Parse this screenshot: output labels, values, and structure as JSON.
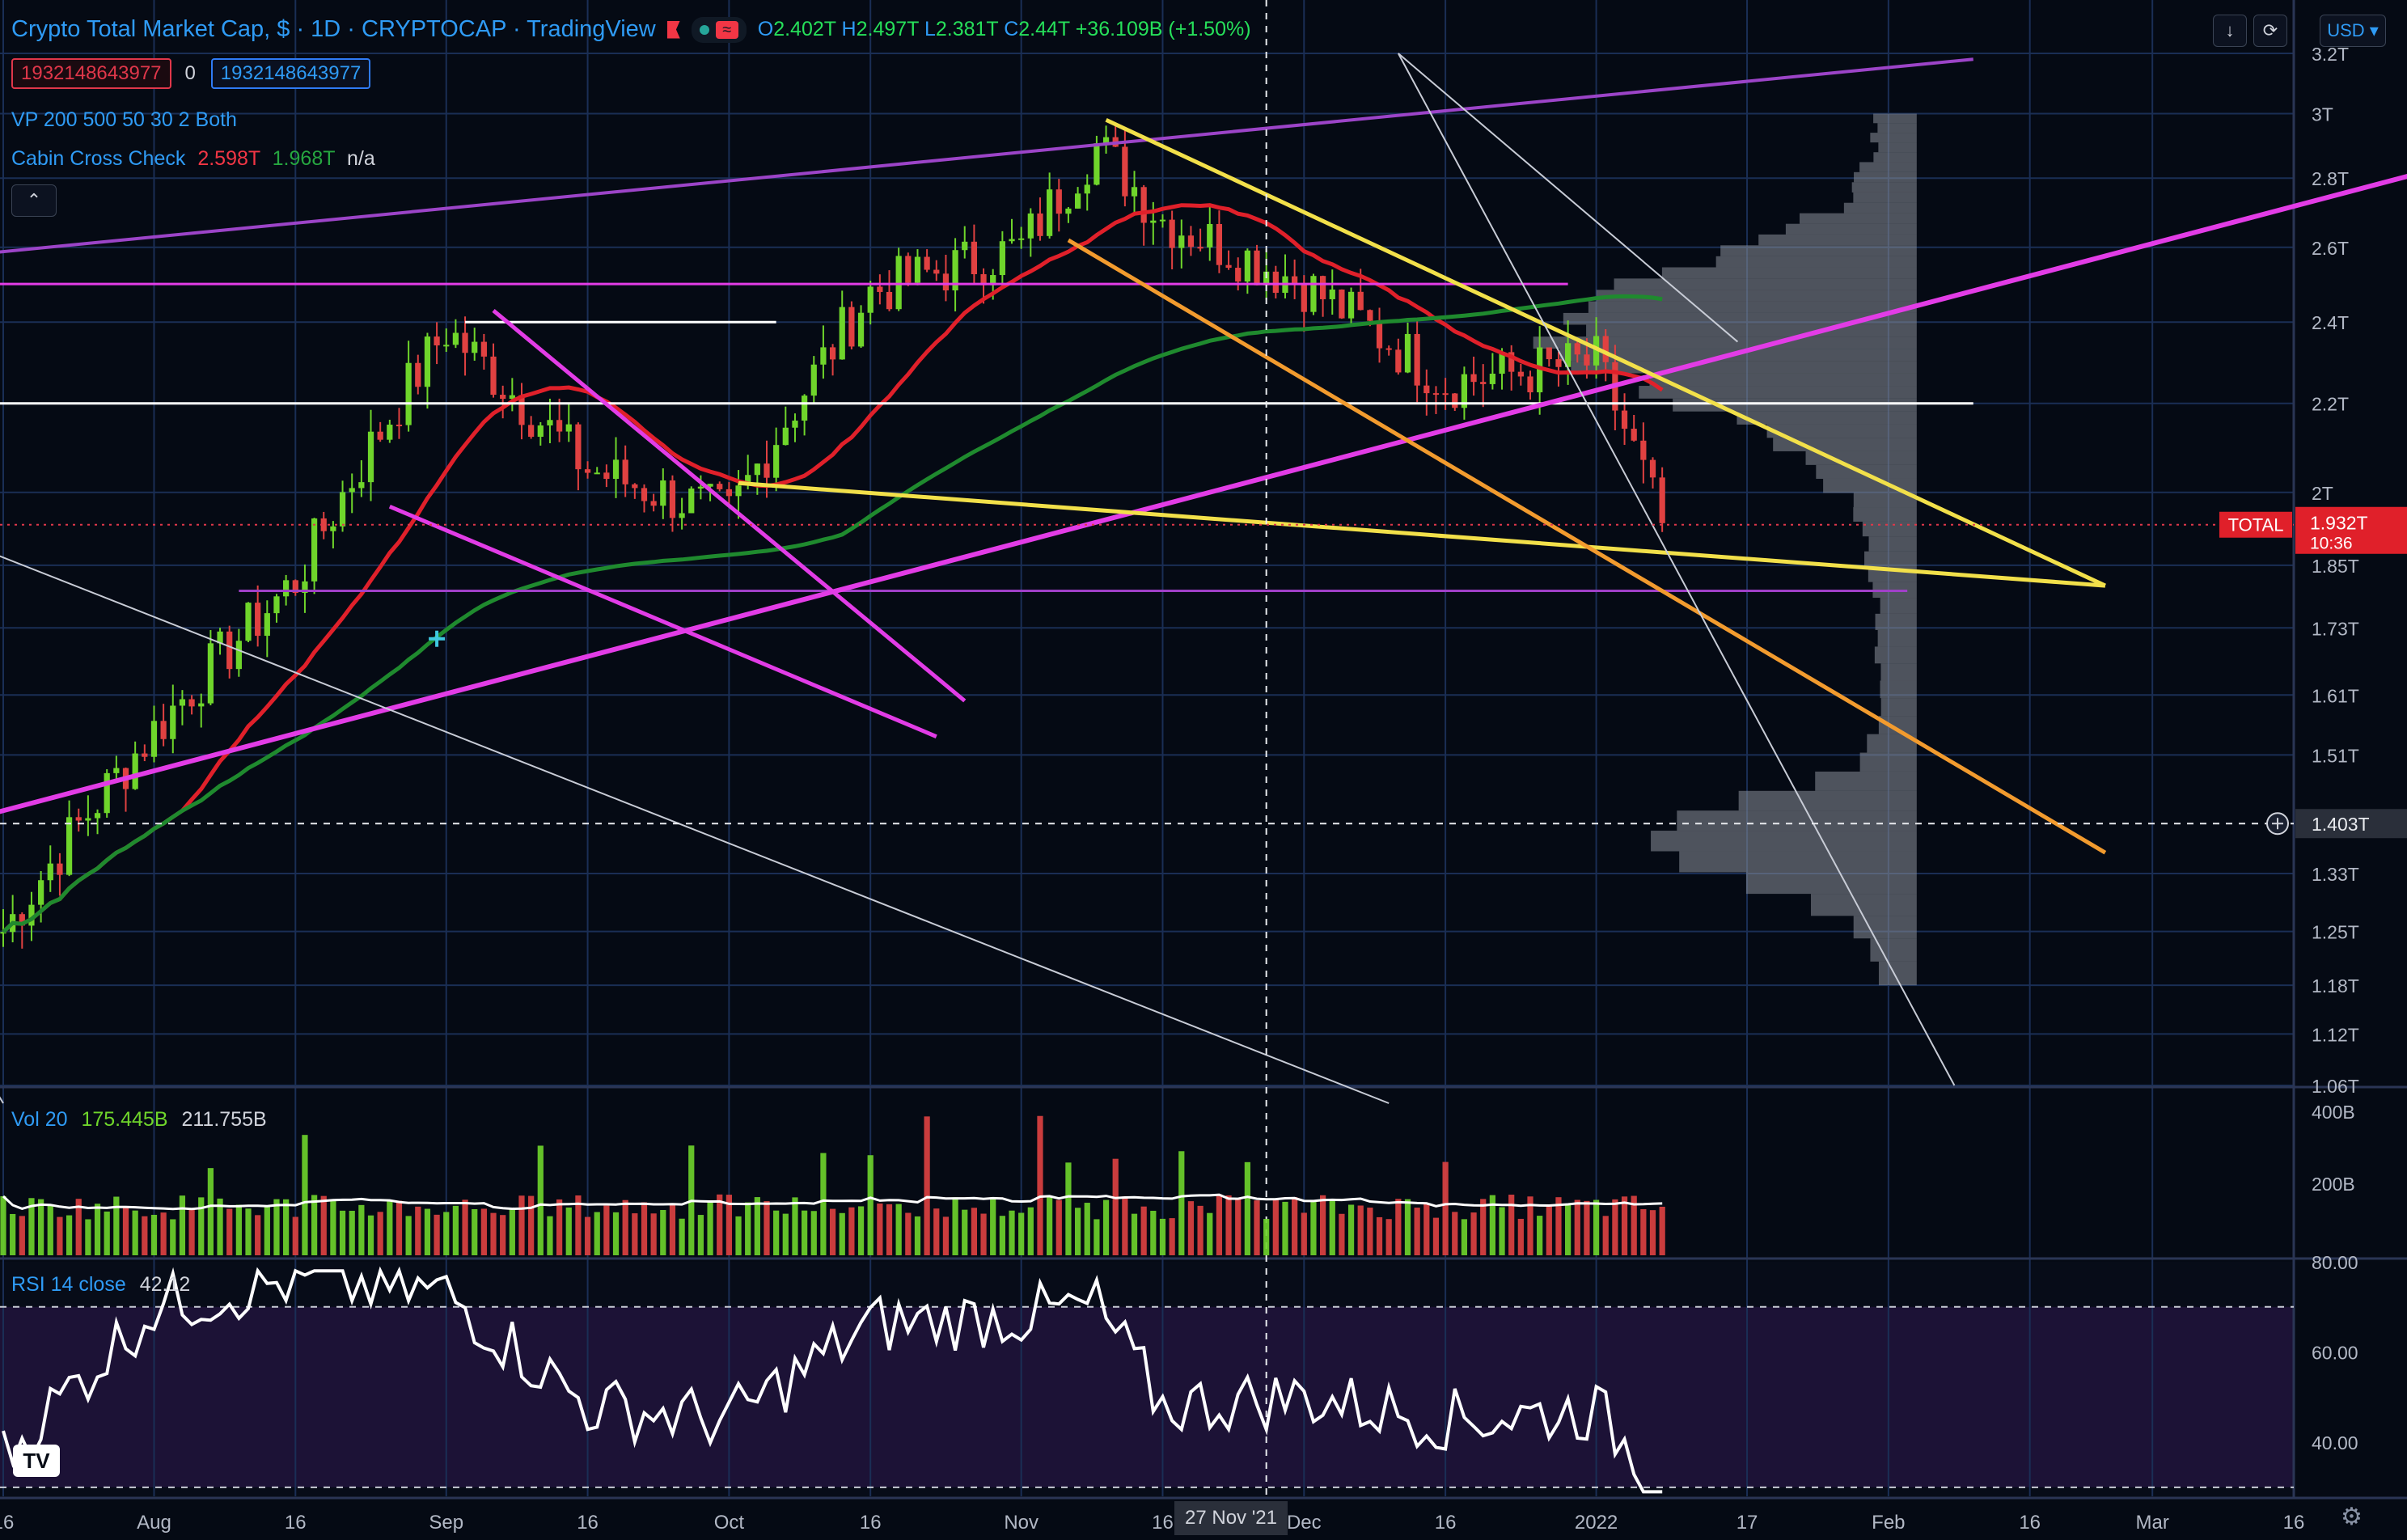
{
  "header": {
    "symbol_title": "Crypto Total Market Cap, $ · 1D · CRYPTOCAP · TradingView",
    "ohlc": {
      "o_label": "O",
      "o": "2.402T",
      "h_label": "H",
      "h": "2.497T",
      "l_label": "L",
      "l": "2.381T",
      "c_label": "C",
      "c": "2.44T",
      "change": "+36.109B (+1.50%)"
    },
    "tag_sell": "1932148643977",
    "tag_mid": "0",
    "tag_buy": "1932148643977",
    "indicator_vp": "VP 200 500 50 30 2 Both",
    "indicator_cabin_name": "Cabin Cross Check",
    "indicator_cabin_v1": "2.598T",
    "indicator_cabin_v2": "1.968T",
    "indicator_cabin_v3": "n/a",
    "collapse_icon": "chevron-up-icon",
    "currency": "USD"
  },
  "price_axis": {
    "labels": [
      "3.2T",
      "3T",
      "2.8T",
      "2.6T",
      "2.4T",
      "2.2T",
      "2T",
      "1.85T",
      "1.73T",
      "1.61T",
      "1.51T",
      "1.403T",
      "1.33T",
      "1.25T",
      "1.18T",
      "1.12T",
      "1.06T"
    ],
    "total_label": "TOTAL",
    "total_price": "1.932T",
    "countdown": "10:36",
    "crosshair_price": "1.403T"
  },
  "time_axis": {
    "labels": [
      "16",
      "Aug",
      "16",
      "Sep",
      "16",
      "Oct",
      "16",
      "Nov",
      "16",
      "Dec",
      "16",
      "2022",
      "17",
      "Feb",
      "16",
      "Mar",
      "16"
    ],
    "crosshair_date": "27 Nov '21"
  },
  "volume_pane": {
    "name": "Vol 20",
    "v1": "175.445B",
    "v2": "211.755B",
    "axis_labels": [
      "400B",
      "200B"
    ]
  },
  "rsi_pane": {
    "name": "RSI 14 close",
    "value": "42.12",
    "axis_labels": [
      "80.00",
      "60.00",
      "40.00"
    ]
  },
  "colors": {
    "background": "#050a14",
    "grid": "#1a2e55",
    "up": "#6fd52b",
    "down": "#e04141",
    "ma_red": "#e0202a",
    "ma_green": "#1f8a2e",
    "magenta": "#e23ce6",
    "yellow": "#f2e04a",
    "orange": "#f29b2e",
    "purple": "#9c44c8",
    "white": "#ffffff"
  },
  "chart_data": [
    {
      "type": "line",
      "title": "Crypto Total Market Cap",
      "ylabel": "",
      "ylim": [
        1.06,
        3.2
      ],
      "y_scale": "log",
      "x": [
        "2021-07-16",
        "2021-08-01",
        "2021-08-16",
        "2021-09-01",
        "2021-09-16",
        "2021-10-01",
        "2021-10-16",
        "2021-11-01",
        "2021-11-09",
        "2021-11-16",
        "2021-12-01",
        "2021-12-16",
        "2022-01-01",
        "2022-01-08"
      ],
      "series": [
        {
          "values": [
            1.25,
            1.55,
            1.82,
            2.38,
            2.05,
            1.95,
            2.48,
            2.6,
            2.9,
            2.68,
            2.5,
            2.25,
            2.3,
            1.93
          ]
        }
      ],
      "grid": true,
      "legend": "none"
    },
    {
      "type": "bar",
      "title": "Vol 20",
      "ylim": [
        0,
        450
      ]
    },
    {
      "type": "line",
      "title": "RSI 14 close",
      "ylim": [
        28,
        80
      ],
      "x": [
        "2021-07-16",
        "2021-08-01",
        "2021-08-16",
        "2021-09-01",
        "2021-09-16",
        "2021-10-01",
        "2021-10-16",
        "2021-11-01",
        "2021-11-09",
        "2021-11-16",
        "2021-12-01",
        "2021-12-16",
        "2022-01-01",
        "2022-01-08"
      ],
      "series": [
        {
          "values": [
            37,
            70,
            76,
            73,
            48,
            45,
            66,
            68,
            70,
            48,
            50,
            45,
            47,
            30
          ]
        }
      ]
    }
  ]
}
